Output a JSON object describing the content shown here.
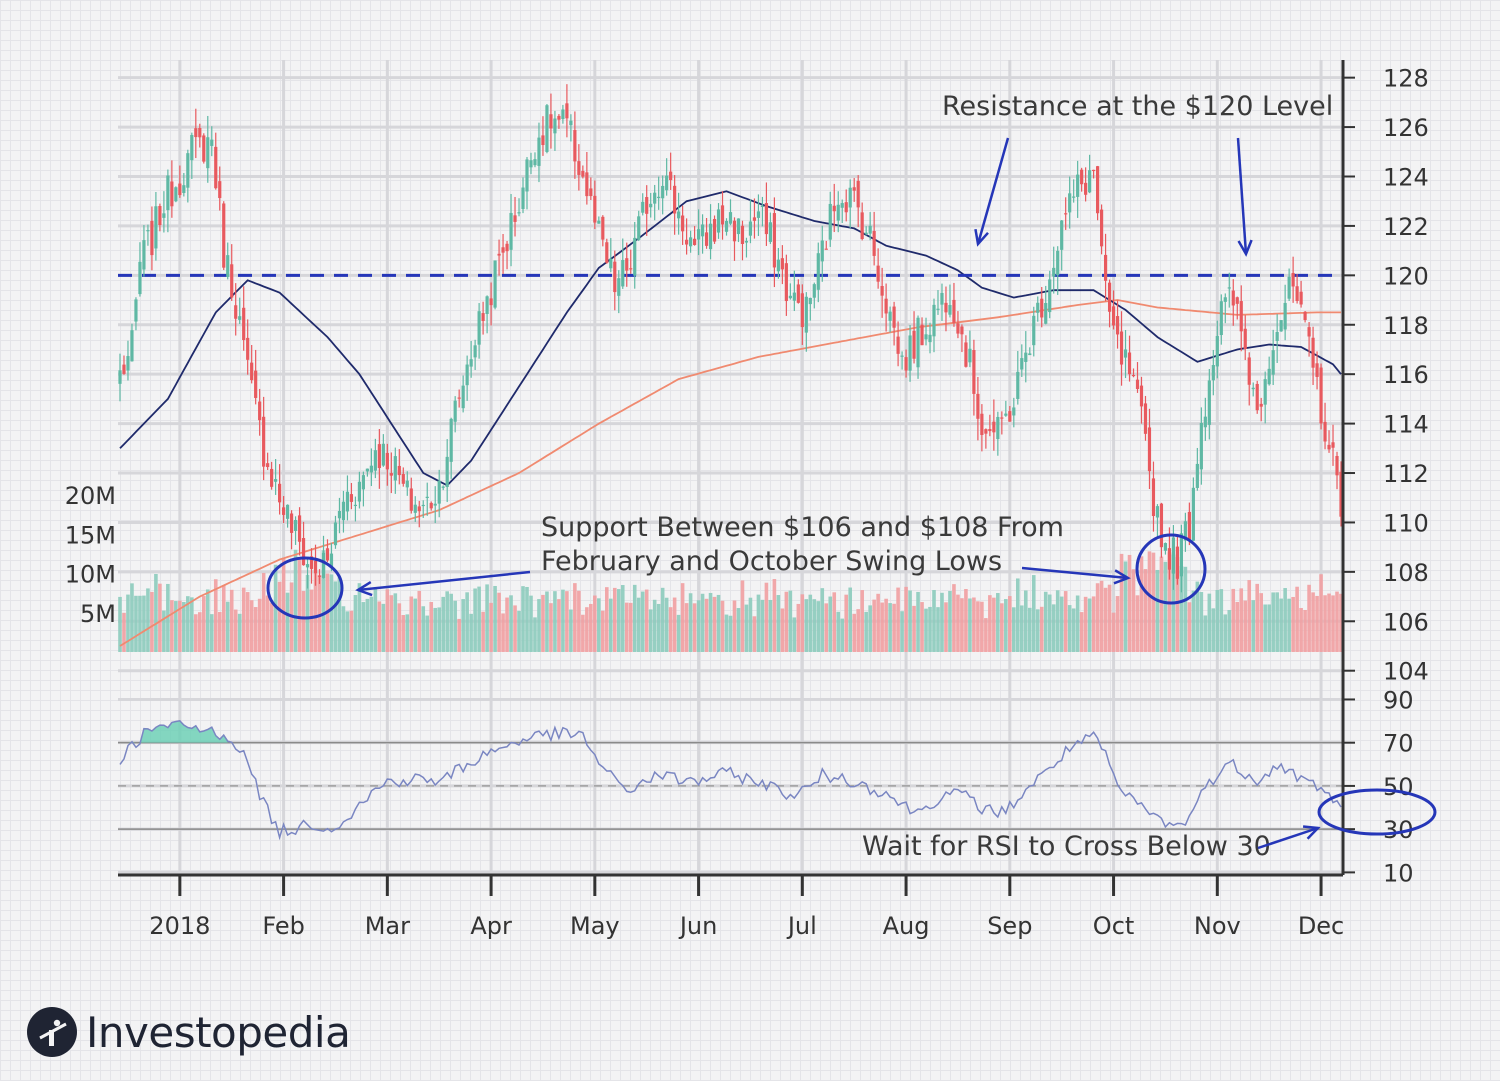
{
  "brand": {
    "name": "Investopedia",
    "logo_icon": "investopedia-logo-icon"
  },
  "colors": {
    "up": "#5fb8a4",
    "down": "#e8595e",
    "up_volume": "#8ccbbd",
    "down_volume": "#f19ea1",
    "ma50": "#1f2a6b",
    "ma200": "#f08a70",
    "annotation": "#2536b8",
    "rsi_line": "#7a86c2"
  },
  "chart_data": {
    "type": "candlestick",
    "price_axis": {
      "ticks": [
        104,
        106,
        108,
        110,
        112,
        114,
        116,
        118,
        120,
        122,
        124,
        126,
        128
      ],
      "range": [
        103.3,
        129.2
      ]
    },
    "volume_axis": {
      "ticks": [
        "5M",
        "10M",
        "15M",
        "20M"
      ],
      "values_millions": [
        5,
        10,
        15,
        20
      ]
    },
    "rsi_axis": {
      "ticks": [
        10,
        30,
        50,
        70,
        90
      ],
      "range": [
        0,
        99
      ]
    },
    "month_labels": [
      "2018",
      "Feb",
      "Mar",
      "Apr",
      "May",
      "Jun",
      "Jul",
      "Aug",
      "Sep",
      "Oct",
      "Nov",
      "Dec"
    ],
    "resistance_level": 120,
    "support_range": [
      106,
      108
    ],
    "rsi_reference_levels": [
      30,
      50,
      70
    ],
    "price_anchors": [
      [
        0,
        116
      ],
      [
        3,
        117
      ],
      [
        5,
        120.5
      ],
      [
        8,
        121.5
      ],
      [
        11,
        123
      ],
      [
        15,
        124
      ],
      [
        18,
        125
      ],
      [
        23,
        125.5
      ],
      [
        26,
        121
      ],
      [
        29,
        119
      ],
      [
        32,
        116
      ],
      [
        36,
        113
      ],
      [
        40,
        111
      ],
      [
        44,
        109.5
      ],
      [
        48,
        108
      ],
      [
        52,
        108.3
      ],
      [
        56,
        111
      ],
      [
        60,
        111.5
      ],
      [
        64,
        113
      ],
      [
        68,
        112.5
      ],
      [
        72,
        111
      ],
      [
        76,
        110.5
      ],
      [
        80,
        111.5
      ],
      [
        84,
        114.5
      ],
      [
        88,
        117
      ],
      [
        92,
        119
      ],
      [
        96,
        121
      ],
      [
        100,
        123
      ],
      [
        104,
        125.5
      ],
      [
        108,
        126.3
      ],
      [
        112,
        126
      ],
      [
        116,
        124
      ],
      [
        120,
        121.5
      ],
      [
        124,
        119.5
      ],
      [
        128,
        120.5
      ],
      [
        132,
        123
      ],
      [
        136,
        124.2
      ],
      [
        140,
        122.5
      ],
      [
        144,
        121
      ],
      [
        148,
        121.8
      ],
      [
        152,
        122.5
      ],
      [
        156,
        121.5
      ],
      [
        160,
        122.5
      ],
      [
        164,
        121
      ],
      [
        168,
        119
      ],
      [
        172,
        118.5
      ],
      [
        176,
        121
      ],
      [
        180,
        123.5
      ],
      [
        184,
        123
      ],
      [
        188,
        121.5
      ],
      [
        192,
        119
      ],
      [
        196,
        116.5
      ],
      [
        200,
        117.5
      ],
      [
        204,
        118.5
      ],
      [
        208,
        119.5
      ],
      [
        212,
        117
      ],
      [
        216,
        114
      ],
      [
        220,
        113.5
      ],
      [
        224,
        115
      ],
      [
        228,
        117.5
      ],
      [
        232,
        119.5
      ],
      [
        236,
        122
      ],
      [
        240,
        123.5
      ],
      [
        244,
        124.2
      ],
      [
        247,
        119
      ],
      [
        250,
        117
      ],
      [
        253,
        116
      ],
      [
        256,
        114
      ],
      [
        259,
        111
      ],
      [
        262,
        109
      ],
      [
        265,
        108.5
      ],
      [
        268,
        110
      ],
      [
        270,
        113
      ],
      [
        273,
        116
      ],
      [
        276,
        118.5
      ],
      [
        279,
        119
      ],
      [
        282,
        117
      ],
      [
        285,
        114.5
      ],
      [
        288,
        117
      ],
      [
        291,
        118.5
      ],
      [
        294,
        119.5
      ],
      [
        297,
        117.5
      ],
      [
        300,
        115.5
      ],
      [
        303,
        113
      ],
      [
        306,
        111
      ]
    ],
    "ma50_anchors": [
      [
        0,
        113
      ],
      [
        12,
        115
      ],
      [
        24,
        118.5
      ],
      [
        32,
        119.8
      ],
      [
        40,
        119.3
      ],
      [
        52,
        117.5
      ],
      [
        60,
        116
      ],
      [
        68,
        114
      ],
      [
        76,
        112
      ],
      [
        82,
        111.5
      ],
      [
        88,
        112.5
      ],
      [
        96,
        114.5
      ],
      [
        104,
        116.5
      ],
      [
        112,
        118.5
      ],
      [
        120,
        120.3
      ],
      [
        130,
        121.5
      ],
      [
        142,
        123
      ],
      [
        152,
        123.4
      ],
      [
        162,
        122.8
      ],
      [
        174,
        122.2
      ],
      [
        184,
        121.9
      ],
      [
        192,
        121.2
      ],
      [
        202,
        120.8
      ],
      [
        210,
        120.2
      ],
      [
        216,
        119.5
      ],
      [
        224,
        119.1
      ],
      [
        234,
        119.4
      ],
      [
        244,
        119.4
      ],
      [
        252,
        118.6
      ],
      [
        260,
        117.5
      ],
      [
        270,
        116.5
      ],
      [
        280,
        117
      ],
      [
        288,
        117.2
      ],
      [
        296,
        117.1
      ],
      [
        304,
        116.4
      ],
      [
        306,
        116
      ]
    ],
    "ma200_anchors": [
      [
        0,
        105
      ],
      [
        20,
        107
      ],
      [
        40,
        108.5
      ],
      [
        60,
        109.5
      ],
      [
        80,
        110.5
      ],
      [
        100,
        112
      ],
      [
        120,
        114
      ],
      [
        140,
        115.8
      ],
      [
        160,
        116.7
      ],
      [
        180,
        117.3
      ],
      [
        200,
        117.9
      ],
      [
        220,
        118.3
      ],
      [
        240,
        118.8
      ],
      [
        250,
        119
      ],
      [
        260,
        118.7
      ],
      [
        280,
        118.4
      ],
      [
        300,
        118.5
      ],
      [
        306,
        118.5
      ]
    ],
    "rsi_anchors": [
      [
        0,
        62
      ],
      [
        3,
        69
      ],
      [
        6,
        74
      ],
      [
        10,
        77
      ],
      [
        16,
        78
      ],
      [
        20,
        76
      ],
      [
        26,
        74
      ],
      [
        30,
        68
      ],
      [
        33,
        56
      ],
      [
        36,
        42
      ],
      [
        38,
        35
      ],
      [
        40,
        29
      ],
      [
        44,
        30
      ],
      [
        48,
        33
      ],
      [
        52,
        30
      ],
      [
        56,
        34
      ],
      [
        60,
        41
      ],
      [
        64,
        48
      ],
      [
        68,
        53
      ],
      [
        72,
        52
      ],
      [
        76,
        54
      ],
      [
        80,
        51
      ],
      [
        84,
        57
      ],
      [
        88,
        61
      ],
      [
        92,
        65
      ],
      [
        96,
        68
      ],
      [
        100,
        71
      ],
      [
        104,
        73
      ],
      [
        108,
        74
      ],
      [
        112,
        74
      ],
      [
        116,
        73
      ],
      [
        120,
        61
      ],
      [
        124,
        52
      ],
      [
        128,
        48
      ],
      [
        132,
        53
      ],
      [
        136,
        55
      ],
      [
        140,
        53
      ],
      [
        144,
        52
      ],
      [
        148,
        54
      ],
      [
        152,
        56
      ],
      [
        156,
        54
      ],
      [
        160,
        52
      ],
      [
        164,
        49
      ],
      [
        168,
        46
      ],
      [
        172,
        48
      ],
      [
        176,
        55
      ],
      [
        180,
        54
      ],
      [
        184,
        52
      ],
      [
        188,
        49
      ],
      [
        192,
        47
      ],
      [
        196,
        41
      ],
      [
        200,
        38
      ],
      [
        204,
        43
      ],
      [
        208,
        47
      ],
      [
        212,
        45
      ],
      [
        216,
        40
      ],
      [
        220,
        37
      ],
      [
        224,
        42
      ],
      [
        228,
        50
      ],
      [
        232,
        56
      ],
      [
        236,
        64
      ],
      [
        240,
        70
      ],
      [
        244,
        72
      ],
      [
        247,
        65
      ],
      [
        250,
        49
      ],
      [
        253,
        44
      ],
      [
        256,
        41
      ],
      [
        259,
        36
      ],
      [
        262,
        33
      ],
      [
        265,
        31
      ],
      [
        268,
        36
      ],
      [
        270,
        43
      ],
      [
        273,
        52
      ],
      [
        276,
        57
      ],
      [
        279,
        60
      ],
      [
        282,
        56
      ],
      [
        285,
        53
      ],
      [
        288,
        57
      ],
      [
        291,
        59
      ],
      [
        294,
        56
      ],
      [
        297,
        52
      ],
      [
        300,
        50
      ],
      [
        303,
        46
      ],
      [
        306,
        41
      ]
    ]
  },
  "annotations": {
    "resistance": "Resistance at the $120 Level",
    "support_line1": "Support Between $106 and $108 From",
    "support_line2": "February and October Swing Lows",
    "rsi": "Wait for RSI to Cross Below 30"
  }
}
